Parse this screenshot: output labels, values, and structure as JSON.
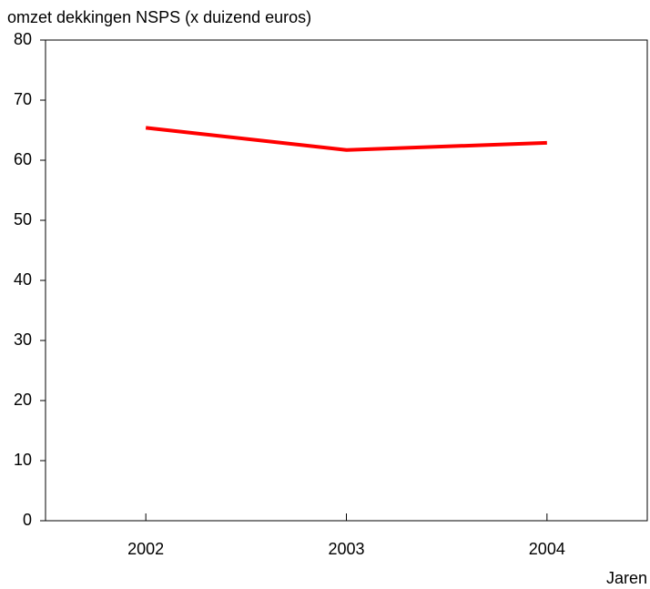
{
  "chart_data": {
    "type": "line",
    "y_axis_label": "omzet dekkingen NSPS (x duizend euros)",
    "x_axis_label": "Jaren",
    "categories": [
      "2002",
      "2003",
      "2004"
    ],
    "series": [
      {
        "name": "omzet dekkingen NSPS",
        "color": "#ff0000",
        "values": [
          65.4,
          61.7,
          62.9
        ]
      }
    ],
    "ylim": [
      0,
      80
    ],
    "yticks": [
      0,
      10,
      20,
      30,
      40,
      50,
      60,
      70,
      80
    ],
    "grid": false
  }
}
